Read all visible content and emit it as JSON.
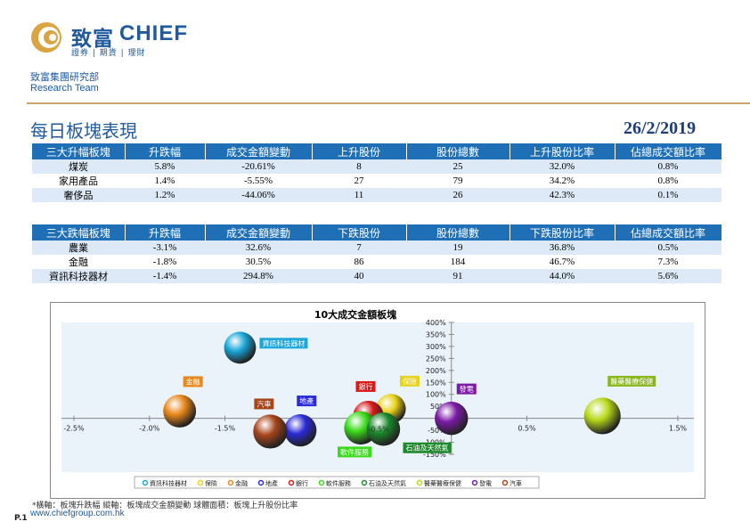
{
  "header": {
    "logo_zh": "致富",
    "logo_en": "CHIEF",
    "logo_tagline": "證券 | 期貨 | 理財",
    "dept_zh": "致富集團研究部",
    "dept_en": "Research Team",
    "title": "每日板塊表現",
    "date": "26/2/2019"
  },
  "top_table": {
    "columns": [
      "三大升幅板塊",
      "升跌幅",
      "成交金額變動",
      "上升股份",
      "股份總數",
      "上升股份比率",
      "佔總成交額比率"
    ],
    "rows": [
      [
        "煤炭",
        "5.8%",
        "-20.61%",
        "8",
        "25",
        "32.0%",
        "0.8%"
      ],
      [
        "家用產品",
        "1.4%",
        "-5.55%",
        "27",
        "79",
        "34.2%",
        "0.8%"
      ],
      [
        "奢侈品",
        "1.2%",
        "-44.06%",
        "11",
        "26",
        "42.3%",
        "0.1%"
      ]
    ]
  },
  "bottom_table": {
    "columns": [
      "三大跌幅板塊",
      "升跌幅",
      "成交金額變動",
      "下跌股份",
      "股份總數",
      "下跌股份比率",
      "佔總成交額比率"
    ],
    "rows": [
      [
        "農業",
        "-3.1%",
        "32.6%",
        "7",
        "19",
        "36.8%",
        "0.5%"
      ],
      [
        "金融",
        "-1.8%",
        "30.5%",
        "86",
        "184",
        "46.7%",
        "7.3%"
      ],
      [
        "資訊科技器材",
        "-1.4%",
        "294.8%",
        "40",
        "91",
        "44.0%",
        "5.6%"
      ]
    ]
  },
  "chart_data": {
    "type": "scatter",
    "title": "10大成交金額板塊",
    "x_ticks": [
      "-2.5%",
      "-2.0%",
      "-1.5%",
      "-1.0%",
      "-0.5%",
      "0.0%",
      "0.5%",
      "1.0%",
      "1.5%"
    ],
    "x_tick_values": [
      -2.5,
      -2.0,
      -1.5,
      -1.0,
      -0.5,
      0.0,
      0.5,
      1.0,
      1.5
    ],
    "y_ticks": [
      "400%",
      "350%",
      "300%",
      "250%",
      "200%",
      "150%",
      "100%",
      "50%",
      "0%",
      "-50%",
      "-100%",
      "-150%"
    ],
    "y_tick_values": [
      400,
      350,
      300,
      250,
      200,
      150,
      100,
      50,
      0,
      -50,
      -100,
      -150
    ],
    "xlim": [
      -2.5,
      1.5
    ],
    "ylim": [
      -150,
      400
    ],
    "legend_position": "bottom",
    "series": [
      {
        "name": "資訊科技器材",
        "x": -1.4,
        "y": 294.8,
        "size": 44.0,
        "color": "#1aa6d9"
      },
      {
        "name": "保險",
        "x": -0.4,
        "y": 40,
        "size": 38,
        "color": "#e8d21a"
      },
      {
        "name": "金融",
        "x": -1.8,
        "y": 30.5,
        "size": 46.7,
        "color": "#e8871a"
      },
      {
        "name": "地產",
        "x": -1.0,
        "y": -50,
        "size": 45,
        "color": "#2a2ad9"
      },
      {
        "name": "銀行",
        "x": -0.55,
        "y": 10,
        "size": 40,
        "color": "#d91a1a"
      },
      {
        "name": "軟件服務",
        "x": -0.6,
        "y": -40,
        "size": 48,
        "color": "#3ad91a"
      },
      {
        "name": "石油及天然氣",
        "x": -0.45,
        "y": -45,
        "size": 48,
        "color": "#1a8a2a"
      },
      {
        "name": "醫藥醫療保健",
        "x": 1.0,
        "y": 10,
        "size": 58,
        "color": "#b8d91a"
      },
      {
        "name": "發電",
        "x": 0.0,
        "y": 0,
        "size": 48,
        "color": "#7a1aa6"
      },
      {
        "name": "汽車",
        "x": -1.2,
        "y": -55,
        "size": 50,
        "color": "#a6441a"
      }
    ],
    "labels": [
      {
        "series": "資訊科技器材",
        "text": "資訊科技器材",
        "bg": "#1aa6d9"
      },
      {
        "series": "保險",
        "text": "保險",
        "bg": "#e8d21a"
      },
      {
        "series": "金融",
        "text": "金融",
        "bg": "#e8871a"
      },
      {
        "series": "地產",
        "text": "地產",
        "bg": "#2a2ad9"
      },
      {
        "series": "銀行",
        "text": "銀行",
        "bg": "#d91a1a"
      },
      {
        "series": "軟件服務",
        "text": "軟件服務",
        "bg": "#3ad91a"
      },
      {
        "series": "石油及天然氣",
        "text": "石油及天然氣",
        "bg": "#1a8a2a"
      },
      {
        "series": "醫藥醫療保健",
        "text": "醫藥醫療保健",
        "bg": "#8ab81a"
      },
      {
        "series": "發電",
        "text": "發電",
        "bg": "#7a1aa6"
      },
      {
        "series": "汽車",
        "text": "汽車",
        "bg": "#a6441a"
      }
    ],
    "bubble_note": "-0.5%"
  },
  "footer": {
    "footnote": "*橫軸：板塊升跌幅     縱軸：板塊成交金額變動     球體面積：板塊上升股份比率",
    "website": "www.chiefgroup.com.hk",
    "page": "P.1"
  }
}
